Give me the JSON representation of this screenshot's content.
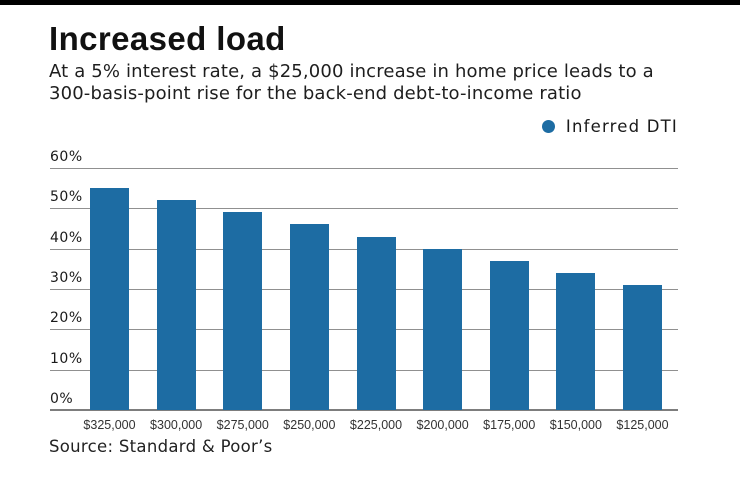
{
  "page": {
    "accent_bar_color": "#000000",
    "background": "#ffffff"
  },
  "header": {
    "title": "Increased load",
    "subtitle_line1": "At a 5% interest rate, a $25,000 increase in home price leads to a",
    "subtitle_line2": "300-basis-point rise for the back-end debt-to-income ratio"
  },
  "legend": {
    "label": "Inferred DTI",
    "marker_color": "#1d6ca3"
  },
  "source": "Source: Standard & Poor’s",
  "chart_data": {
    "type": "bar",
    "title": "Increased load",
    "subtitle": "At a 5% interest rate, a $25,000 increase in home price leads to a 300-basis-point rise for the back-end debt-to-income ratio",
    "categories": [
      "$325,000",
      "$300,000",
      "$275,000",
      "$250,000",
      "$225,000",
      "$200,000",
      "$175,000",
      "$150,000",
      "$125,000"
    ],
    "series": [
      {
        "name": "Inferred DTI",
        "values": [
          55,
          52,
          49,
          46,
          43,
          40,
          37,
          34,
          31
        ]
      }
    ],
    "xlabel": "",
    "ylabel": "",
    "ylim": [
      0,
      60
    ],
    "ytick_step": 10,
    "ytick_suffix": "%",
    "grid": true,
    "legend_position": "top-right",
    "bar_color": "#1d6ca3",
    "source": "Source: Standard & Poor’s"
  }
}
